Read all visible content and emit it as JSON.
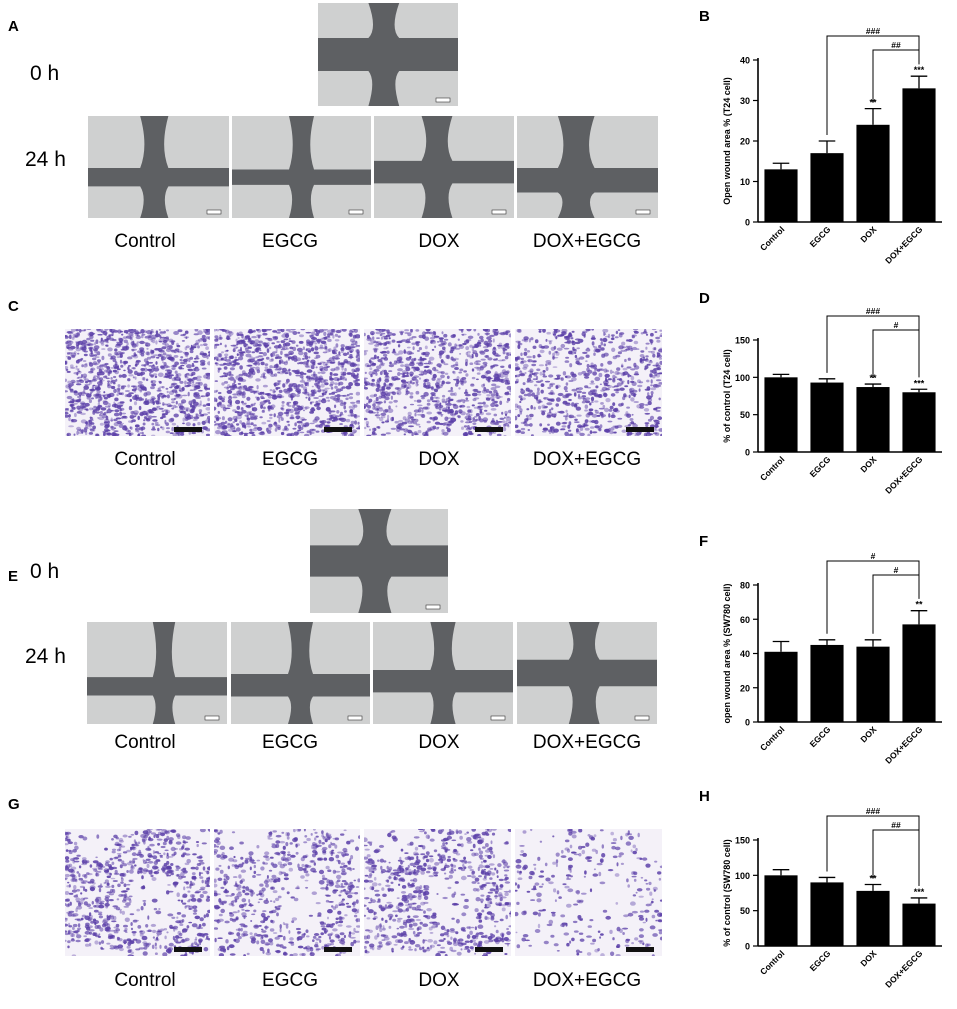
{
  "panels": {
    "A": "A",
    "B": "B",
    "C": "C",
    "D": "D",
    "E": "E",
    "F": "F",
    "G": "G",
    "H": "H"
  },
  "time_labels": {
    "t0": "0 h",
    "t24": "24 h"
  },
  "conditions": [
    "Control",
    "EGCG",
    "DOX",
    "DOX+EGCG"
  ],
  "colors": {
    "wound_bg": "#cfd0d0",
    "wound_gap": "#5e6063",
    "stain": "#5b3fa8",
    "bar": "#000000"
  },
  "chart_data": [
    {
      "id": "B",
      "type": "bar",
      "categories": [
        "Control",
        "EGCG",
        "DOX",
        "DOX+EGCG"
      ],
      "values": [
        13,
        17,
        24,
        33
      ],
      "errors": [
        1.5,
        3,
        4,
        3
      ],
      "ylabel": "Open wound area % (T24 cell)",
      "ylim": [
        0,
        40
      ],
      "yticks": [
        "0",
        "10",
        "20",
        "30",
        "40"
      ],
      "ytick_values": [
        0,
        10,
        20,
        30,
        40
      ],
      "bar_stars": [
        "",
        "",
        "**",
        "***"
      ],
      "brackets": [
        {
          "from": 1,
          "to": 3,
          "label": "###"
        },
        {
          "from": 2,
          "to": 3,
          "label": "##"
        }
      ]
    },
    {
      "id": "D",
      "type": "bar",
      "categories": [
        "Control",
        "EGCG",
        "DOX",
        "DOX+EGCG"
      ],
      "values": [
        100,
        93,
        87,
        80
      ],
      "errors": [
        4,
        5,
        4,
        4
      ],
      "ylabel": "% of control (T24 cell)",
      "ylim": [
        0,
        150
      ],
      "yticks": [
        "0",
        "50",
        "100",
        "150"
      ],
      "ytick_values": [
        0,
        50,
        100,
        150
      ],
      "bar_stars": [
        "",
        "",
        "**",
        "***"
      ],
      "brackets": [
        {
          "from": 1,
          "to": 3,
          "label": "###"
        },
        {
          "from": 2,
          "to": 3,
          "label": "#"
        }
      ]
    },
    {
      "id": "F",
      "type": "bar",
      "categories": [
        "Control",
        "EGCG",
        "DOX",
        "DOX+EGCG"
      ],
      "values": [
        41,
        45,
        44,
        57
      ],
      "errors": [
        6,
        3,
        4,
        8
      ],
      "ylabel": "open wound area % (SW780 cell)",
      "ylim": [
        0,
        80
      ],
      "yticks": [
        "0",
        "20",
        "40",
        "60",
        "80"
      ],
      "ytick_values": [
        0,
        20,
        40,
        60,
        80
      ],
      "bar_stars": [
        "",
        "",
        "",
        "**"
      ],
      "brackets": [
        {
          "from": 1,
          "to": 3,
          "label": "#"
        },
        {
          "from": 2,
          "to": 3,
          "label": "#"
        }
      ]
    },
    {
      "id": "H",
      "type": "bar",
      "categories": [
        "Control",
        "EGCG",
        "DOX",
        "DOX+EGCG"
      ],
      "values": [
        100,
        90,
        78,
        60
      ],
      "errors": [
        8,
        7,
        9,
        8
      ],
      "ylabel": "% of control  (SW780 cell)",
      "ylim": [
        0,
        150
      ],
      "yticks": [
        "0",
        "50",
        "100",
        "150"
      ],
      "ytick_values": [
        0,
        50,
        100,
        150
      ],
      "bar_stars": [
        "",
        "",
        "**",
        "***"
      ],
      "brackets": [
        {
          "from": 1,
          "to": 3,
          "label": "###"
        },
        {
          "from": 2,
          "to": 3,
          "label": "##"
        }
      ]
    }
  ]
}
